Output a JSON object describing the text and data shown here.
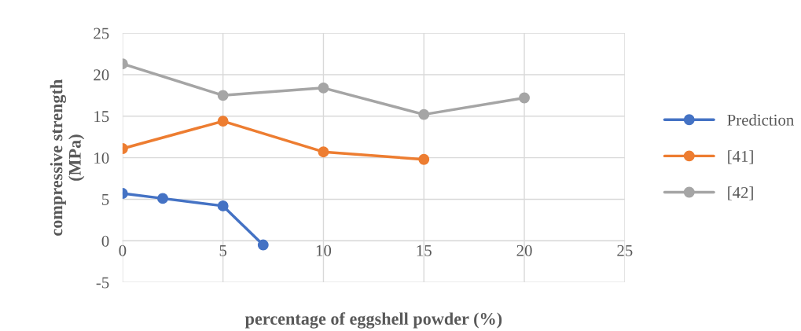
{
  "chart_data": {
    "type": "line",
    "xlabel": "percentage of eggshell powder (%)",
    "ylabel": "compressive strength\n(MPa)",
    "xlim": [
      0,
      25
    ],
    "xticks": [
      0,
      5,
      10,
      15,
      20,
      25
    ],
    "ylim": [
      -5,
      25
    ],
    "yticks": [
      -5,
      0,
      5,
      10,
      15,
      20,
      25
    ],
    "grid": true,
    "legend": "right",
    "marker": "circle",
    "line_style": "solid",
    "series": [
      {
        "name": "Prediction",
        "color": "#4472c4",
        "x": [
          0,
          2,
          5,
          7
        ],
        "values": [
          5.7,
          5.1,
          4.2,
          -0.5
        ]
      },
      {
        "name": "[41]",
        "color": "#ed7d31",
        "x": [
          0,
          5,
          10,
          15
        ],
        "values": [
          11.1,
          14.4,
          10.7,
          9.8
        ]
      },
      {
        "name": "[42]",
        "color": "#a5a5a5",
        "x": [
          0,
          5,
          10,
          15,
          20
        ],
        "values": [
          21.3,
          17.5,
          18.4,
          15.2,
          17.2
        ]
      }
    ]
  }
}
